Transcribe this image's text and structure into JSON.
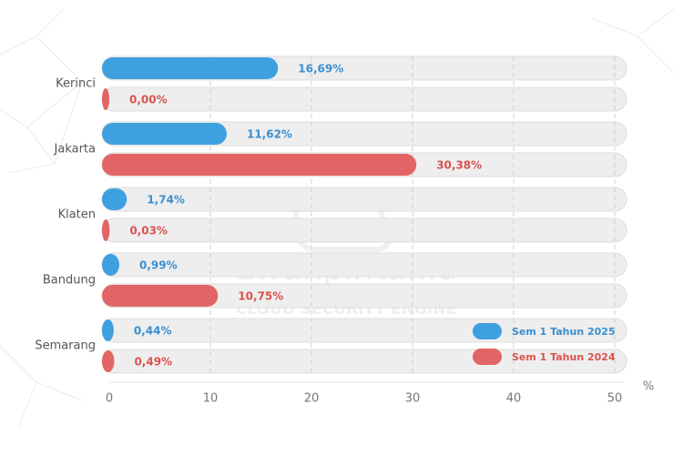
{
  "chart_data": {
    "type": "hbar",
    "categories": [
      "Kerinci",
      "Jakarta",
      "Klaten",
      "Bandung",
      "Semarang"
    ],
    "series": [
      {
        "name": "Sem 1 Tahun 2025",
        "color": "#3fa0e0",
        "label_color": "#3a8fd0",
        "values": [
          16.69,
          11.62,
          1.74,
          0.99,
          0.44
        ],
        "value_labels": [
          "16,69%",
          "11,62%",
          "1,74%",
          "0,99%",
          "0,44%"
        ]
      },
      {
        "name": "Sem 1 Tahun 2024",
        "color": "#e36464",
        "label_color": "#d9534f",
        "values": [
          0.0,
          30.38,
          0.03,
          10.75,
          0.49
        ],
        "value_labels": [
          "0,00%",
          "30,38%",
          "0,03%",
          "10,75%",
          "0,49%"
        ]
      }
    ],
    "xlim": [
      0,
      50
    ],
    "xticks": [
      0,
      10,
      20,
      30,
      40,
      50
    ],
    "xlabel": "%",
    "grid": true,
    "legend": "bottom-right",
    "watermark": {
      "text": "awanpintar.id",
      "subtitle": "CLOUD SECURITY ENGINE"
    }
  }
}
